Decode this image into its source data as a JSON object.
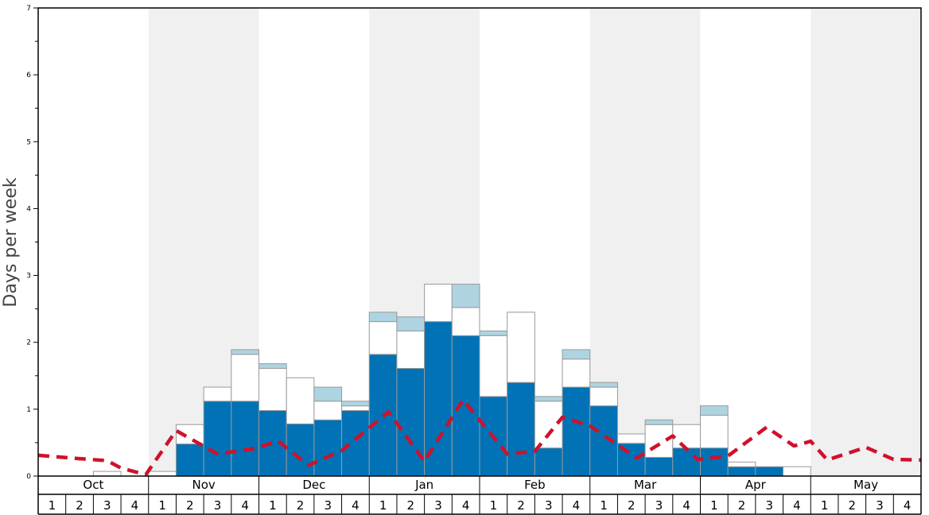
{
  "chart_data": {
    "type": "bar",
    "ylabel": "Days per week",
    "ylim": [
      0,
      7
    ],
    "yticks": [
      0,
      1,
      2,
      3,
      4,
      5,
      6,
      7
    ],
    "months": [
      "Oct",
      "Nov",
      "Dec",
      "Jan",
      "Feb",
      "Mar",
      "Apr",
      "May"
    ],
    "week_labels": [
      "1",
      "2",
      "3",
      "4"
    ],
    "shaded_months": [
      "Nov",
      "Jan",
      "Mar",
      "May"
    ],
    "stack_order": [
      "Dark blue",
      "White",
      "Light blue"
    ],
    "colors": {
      "Dark blue": "#0072b5",
      "White": "#ffffff",
      "Light blue": "#aed4e1",
      "line": "#d0112b",
      "shading": "#f0f0f0"
    },
    "series": [
      {
        "values": [
          0,
          0,
          0,
          0,
          0,
          0.48,
          1.12,
          1.12,
          0.98,
          0.78,
          0.84,
          0.98,
          1.82,
          1.61,
          2.31,
          2.1,
          1.19,
          1.4,
          0.42,
          1.33,
          1.05,
          0.49,
          0.28,
          0.42,
          0.42,
          0.14,
          0.14,
          0,
          0,
          0,
          0,
          0
        ]
      },
      {
        "values": [
          0,
          0,
          0.07,
          0,
          0.07,
          0.29,
          0.21,
          0.7,
          0.63,
          0.69,
          0.28,
          0.07,
          0.49,
          0.56,
          0.56,
          0.42,
          0.91,
          1.05,
          0.7,
          0.42,
          0.28,
          0.14,
          0.49,
          0.35,
          0.49,
          0.07,
          0,
          0.14,
          0,
          0,
          0,
          0
        ]
      },
      {
        "values": [
          0,
          0,
          0,
          0,
          0,
          0,
          0,
          0.07,
          0.07,
          0,
          0.21,
          0.07,
          0.14,
          0.21,
          0,
          0.35,
          0.07,
          0,
          0.07,
          0.14,
          0.07,
          0,
          0.07,
          0,
          0.14,
          0,
          0,
          0,
          0,
          0,
          0,
          0
        ]
      }
    ],
    "line": {
      "x_positions": [
        0,
        1.5,
        2.5,
        3,
        3.9,
        5,
        6.5,
        7.8,
        8.7,
        9.8,
        11,
        12.7,
        14,
        15.4,
        17,
        18,
        19,
        20,
        21.7,
        23,
        23.9,
        25,
        26.4,
        27.4,
        28,
        28.6,
        30,
        31,
        32
      ],
      "values": [
        0.31,
        0.26,
        0.23,
        0.12,
        0.02,
        0.68,
        0.33,
        0.41,
        0.52,
        0.16,
        0.38,
        0.96,
        0.22,
        1.14,
        0.33,
        0.37,
        0.88,
        0.75,
        0.27,
        0.6,
        0.25,
        0.3,
        0.73,
        0.45,
        0.52,
        0.24,
        0.43,
        0.25,
        0.24
      ]
    }
  }
}
